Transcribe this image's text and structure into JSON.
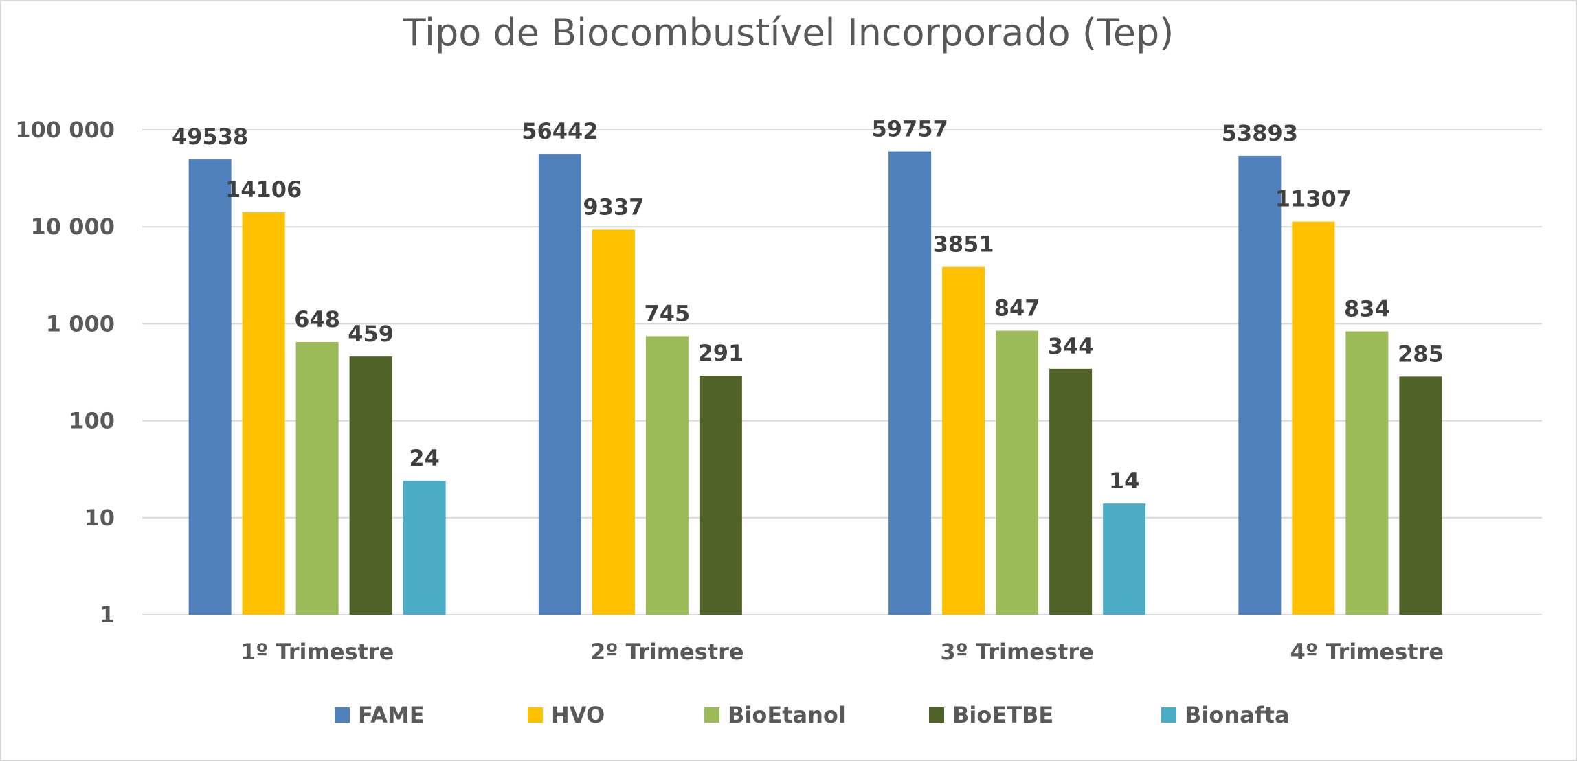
{
  "chart_data": {
    "type": "bar",
    "title": "Tipo de Biocombustível Incorporado (Tep)",
    "xlabel": "",
    "ylabel": "",
    "yscale": "log",
    "ylim": [
      1,
      100000
    ],
    "y_ticks": [
      1,
      10,
      100,
      1000,
      10000,
      100000
    ],
    "y_tick_labels": [
      "1",
      "10",
      "100",
      "1 000",
      "10 000",
      "100 000"
    ],
    "grid": true,
    "legend_position": "bottom",
    "categories": [
      "1º Trimestre",
      "2º Trimestre",
      "3º Trimestre",
      "4º Trimestre"
    ],
    "series": [
      {
        "name": "FAME",
        "color": "#4f81bd",
        "values": [
          49538,
          56442,
          59757,
          53893
        ]
      },
      {
        "name": "HVO",
        "color": "#ffc000",
        "values": [
          14106,
          9337,
          3851,
          11307
        ]
      },
      {
        "name": "BioEtanol",
        "color": "#9bbb59",
        "values": [
          648,
          745,
          847,
          834
        ]
      },
      {
        "name": "BioETBE",
        "color": "#4f6228",
        "values": [
          459,
          291,
          344,
          285
        ]
      },
      {
        "name": "Bionafta",
        "color": "#4bacc6",
        "values": [
          24,
          null,
          14,
          null
        ]
      }
    ]
  }
}
